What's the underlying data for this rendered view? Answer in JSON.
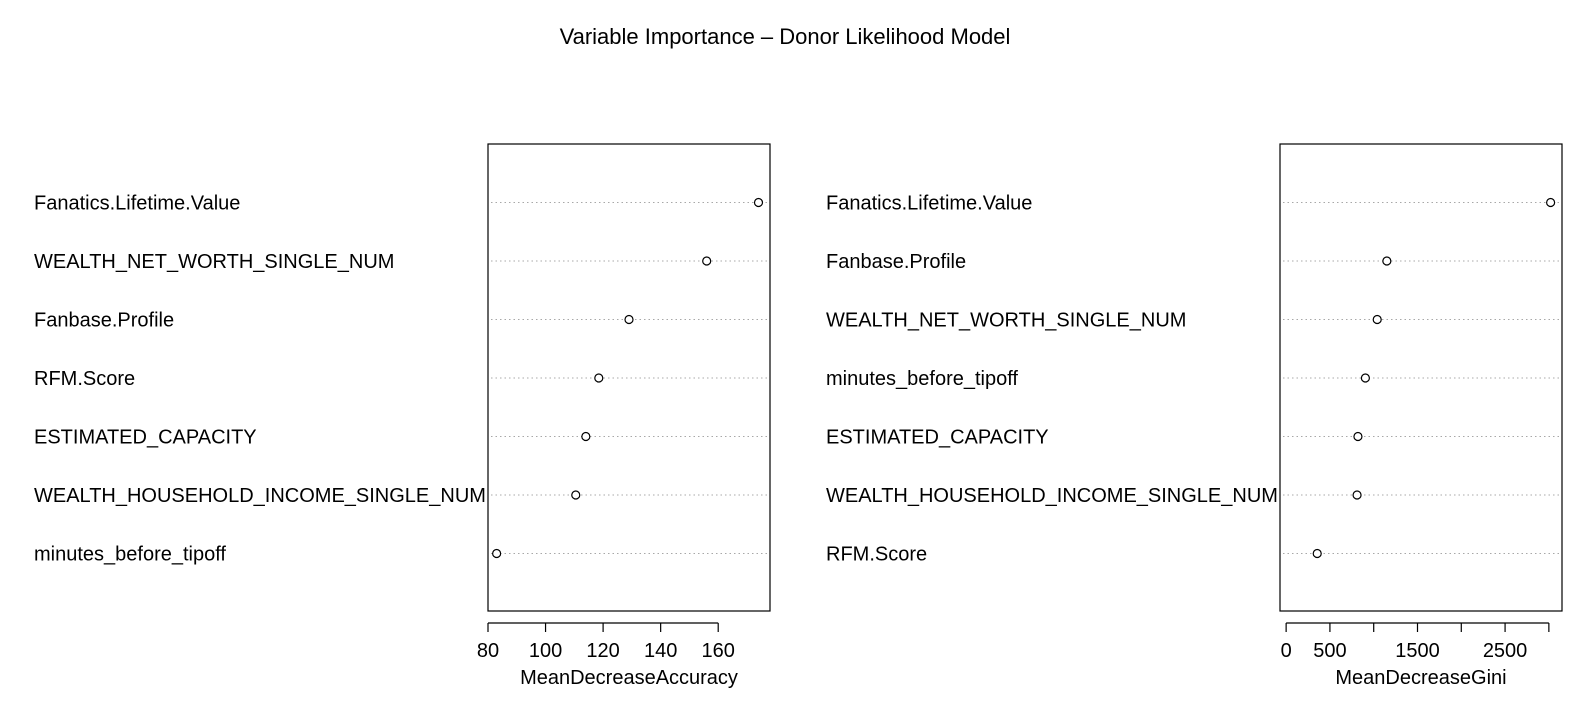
{
  "title": "Variable Importance – Donor Likelihood Model",
  "chart_data": [
    {
      "type": "scatter",
      "subtype": "dotchart",
      "xlabel": "MeanDecreaseAccuracy",
      "ylabel": "",
      "xlim": [
        80,
        178
      ],
      "xticks": [
        80,
        100,
        120,
        140,
        160
      ],
      "tick_labels": [
        "80",
        "100",
        "120",
        "140",
        "160"
      ],
      "grid": "dotted horizontal",
      "categories": [
        "Fanatics.Lifetime.Value",
        "WEALTH_NET_WORTH_SINGLE_NUM",
        "Fanbase.Profile",
        "RFM.Score",
        "ESTIMATED_CAPACITY",
        "WEALTH_HOUSEHOLD_INCOME_SINGLE_NUM",
        "minutes_before_tipoff"
      ],
      "values": [
        174,
        156,
        129,
        118.5,
        114,
        110.5,
        83
      ]
    },
    {
      "type": "scatter",
      "subtype": "dotchart",
      "xlabel": "MeanDecreaseGini",
      "ylabel": "",
      "xlim": [
        -70,
        3150
      ],
      "xticks": [
        0,
        500,
        1000,
        1500,
        2000,
        2500,
        3000
      ],
      "tick_labels": [
        "0",
        "500",
        "",
        "1500",
        "",
        "2500",
        ""
      ],
      "grid": "dotted horizontal",
      "categories": [
        "Fanatics.Lifetime.Value",
        "Fanbase.Profile",
        "WEALTH_NET_WORTH_SINGLE_NUM",
        "minutes_before_tipoff",
        "ESTIMATED_CAPACITY",
        "WEALTH_HOUSEHOLD_INCOME_SINGLE_NUM",
        "RFM.Score"
      ],
      "values": [
        3020,
        1150,
        1040,
        905,
        820,
        810,
        355
      ]
    }
  ]
}
